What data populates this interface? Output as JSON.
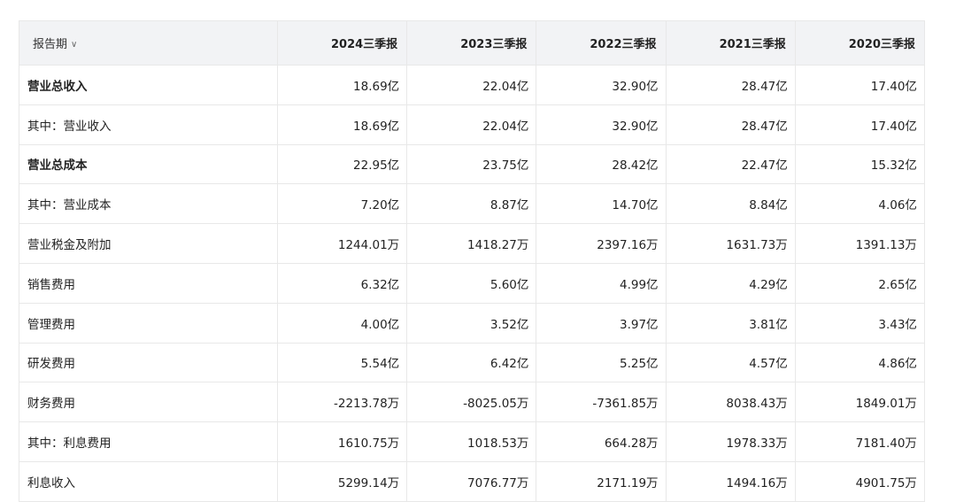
{
  "table": {
    "period_label": "报告期",
    "columns": [
      "2024三季报",
      "2023三季报",
      "2022三季报",
      "2021三季报",
      "2020三季报"
    ],
    "rows": [
      {
        "label": "营业总收入",
        "bold": true,
        "values": [
          "18.69亿",
          "22.04亿",
          "32.90亿",
          "28.47亿",
          "17.40亿"
        ]
      },
      {
        "label": "其中：营业收入",
        "bold": false,
        "values": [
          "18.69亿",
          "22.04亿",
          "32.90亿",
          "28.47亿",
          "17.40亿"
        ]
      },
      {
        "label": "营业总成本",
        "bold": true,
        "values": [
          "22.95亿",
          "23.75亿",
          "28.42亿",
          "22.47亿",
          "15.32亿"
        ]
      },
      {
        "label": "其中：营业成本",
        "bold": false,
        "values": [
          "7.20亿",
          "8.87亿",
          "14.70亿",
          "8.84亿",
          "4.06亿"
        ]
      },
      {
        "label": "营业税金及附加",
        "bold": false,
        "values": [
          "1244.01万",
          "1418.27万",
          "2397.16万",
          "1631.73万",
          "1391.13万"
        ]
      },
      {
        "label": "销售费用",
        "bold": false,
        "values": [
          "6.32亿",
          "5.60亿",
          "4.99亿",
          "4.29亿",
          "2.65亿"
        ]
      },
      {
        "label": "管理费用",
        "bold": false,
        "values": [
          "4.00亿",
          "3.52亿",
          "3.97亿",
          "3.81亿",
          "3.43亿"
        ]
      },
      {
        "label": "研发费用",
        "bold": false,
        "values": [
          "5.54亿",
          "6.42亿",
          "5.25亿",
          "4.57亿",
          "4.86亿"
        ]
      },
      {
        "label": "财务费用",
        "bold": false,
        "values": [
          "-2213.78万",
          "-8025.05万",
          "-7361.85万",
          "8038.43万",
          "1849.01万"
        ]
      },
      {
        "label": "其中：利息费用",
        "bold": false,
        "values": [
          "1610.75万",
          "1018.53万",
          "664.28万",
          "1978.33万",
          "7181.40万"
        ]
      },
      {
        "label": "利息收入",
        "bold": false,
        "values": [
          "5299.14万",
          "7076.77万",
          "2171.19万",
          "1494.16万",
          "4901.75万"
        ]
      }
    ]
  }
}
